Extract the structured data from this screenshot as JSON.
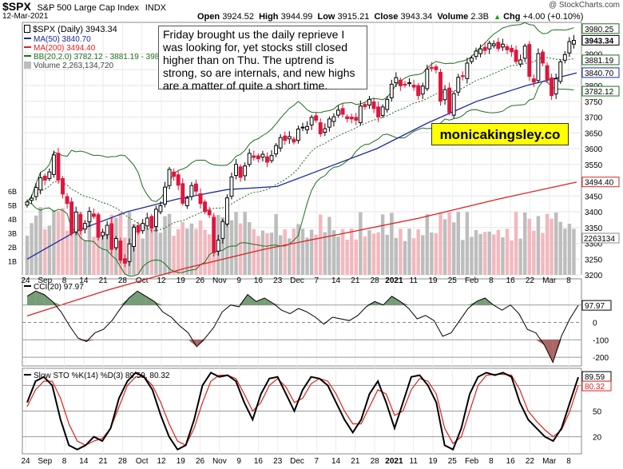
{
  "header": {
    "symbol": "$SPX",
    "name": "S&P 500 Large Cap Index",
    "exchange": "INDX",
    "date": "12-Mar-2021",
    "watermark": "@ StockCharts.com",
    "open_label": "Open",
    "open": "3924.52",
    "high_label": "High",
    "high": "3944.99",
    "low_label": "Low",
    "low": "3915.21",
    "close_label": "Close",
    "close": "3943.34",
    "volume_label": "Volume",
    "volume": "2.3B",
    "chg_label": "Chg",
    "chg": "+4.00 (+0.10%)",
    "chg_icon": "up-triangle"
  },
  "legend": {
    "price": "$SPX (Daily) 3943.34",
    "ma50": "MA(50) 3840.70",
    "ma200": "MA(200) 3494.40",
    "bb": "BB(20,2.0) 3782.12 - 3881.19 - 3980.25",
    "volume": "Volume 2,263,134,720",
    "cci": "CCI(20) 97.97",
    "sto": "Slow STO %K(14) %D(3) 89.59, 80.32"
  },
  "annotation": "Friday brought us the daily reprieve I was looking for, yet stocks still closed higher than on Thu. The uptrend is strong, so are internals, and new highs are a matter of quite a short time.",
  "brand": "monicakingsley.co",
  "colors": {
    "up": "#000000",
    "down": "#e0143c",
    "ma50": "#1c2a9c",
    "ma200": "#e02020",
    "bb": "#1e6e1e",
    "bbmid": "#1e6e1e",
    "vol_up": "#bdbdbd",
    "vol_down": "#f2b8bd",
    "cci": "#000000",
    "cci_fill": "#5e8c5e",
    "cci_fill_neg": "#9c4a4a",
    "stoK": "#000000",
    "stoD": "#e02020"
  },
  "chart_data": [
    {
      "type": "candlestick",
      "title": "$SPX (Daily)",
      "ylim": [
        3200,
        4000
      ],
      "yticks": [
        3200,
        3250,
        3300,
        3350,
        3400,
        3450,
        3500,
        3550,
        3600,
        3650,
        3700,
        3750,
        3800,
        3850,
        3900
      ],
      "xticks": [
        "24",
        "Sep",
        "8",
        "14",
        "21",
        "28",
        "Oct",
        "12",
        "19",
        "26",
        "Nov",
        "9",
        "16",
        "23",
        "Dec",
        "7",
        "14",
        "21",
        "28",
        "2021",
        "11",
        "19",
        "25",
        "Feb",
        "8",
        "16",
        "22",
        "Mar",
        "8"
      ],
      "price_labels": {
        "bb_upper": "3980.25",
        "last": "3943.34",
        "bb_mid": "3881.19",
        "ma50": "3840.70",
        "bb_lower": "3782.12",
        "ma200": "3494.40",
        "volume": "2263134"
      },
      "volume_axis": [
        "1B",
        "2B",
        "3B",
        "4B",
        "5B",
        "6B"
      ],
      "close": [
        3431,
        3443,
        3477,
        3508,
        3500,
        3526,
        3580,
        3500,
        3456,
        3426,
        3331,
        3399,
        3340,
        3363,
        3401,
        3385,
        3319,
        3335,
        3357,
        3281,
        3315,
        3246,
        3237,
        3298,
        3351,
        3335,
        3363,
        3380,
        3348,
        3408,
        3419,
        3478,
        3534,
        3512,
        3484,
        3427,
        3443,
        3483,
        3465,
        3426,
        3400,
        3390,
        3270,
        3310,
        3369,
        3444,
        3510,
        3550,
        3509,
        3545,
        3585,
        3572,
        3568,
        3582,
        3557,
        3578,
        3610,
        3635,
        3626,
        3638,
        3621,
        3662,
        3668,
        3670,
        3699,
        3690,
        3647,
        3663,
        3694,
        3701,
        3722,
        3709,
        3695,
        3694,
        3690,
        3735,
        3733,
        3756,
        3727,
        3700,
        3732,
        3756,
        3804,
        3825,
        3799,
        3801,
        3809,
        3795,
        3768,
        3798,
        3852,
        3854,
        3850,
        3750,
        3787,
        3714,
        3774,
        3826,
        3830,
        3871,
        3887,
        3909,
        3916,
        3911,
        3934,
        3932,
        3917,
        3931,
        3913,
        3907,
        3876,
        3881,
        3925,
        3829,
        3811,
        3901,
        3871,
        3819,
        3768,
        3821,
        3875,
        3898,
        3939,
        3943
      ],
      "ma50_approx": [
        3250,
        3340,
        3400,
        3440,
        3470,
        3480,
        3540,
        3600,
        3680,
        3750,
        3800,
        3840
      ],
      "ma200_approx": [
        3070,
        3150,
        3220,
        3280,
        3330,
        3380,
        3440,
        3494
      ]
    },
    {
      "type": "line",
      "title": "CCI(20)",
      "ylim": [
        -250,
        250
      ],
      "yticks": [
        -200,
        -100,
        0,
        100
      ],
      "last": "97.97",
      "values": [
        150,
        180,
        160,
        120,
        60,
        -20,
        -90,
        -110,
        -60,
        -40,
        10,
        80,
        140,
        180,
        150,
        120,
        60,
        30,
        -20,
        -60,
        -140,
        -90,
        -30,
        60,
        100,
        90,
        160,
        120,
        140,
        110,
        70,
        50,
        80,
        60,
        30,
        -10,
        30,
        20,
        10,
        40,
        90,
        120,
        100,
        150,
        120,
        80,
        20,
        40,
        10,
        -80,
        -60,
        10,
        80,
        120,
        140,
        100,
        70,
        100,
        50,
        -40,
        -60,
        -130,
        -230,
        -80,
        20,
        97.97
      ]
    },
    {
      "type": "line",
      "title": "Slow STO %K(14) %D(3)",
      "ylim": [
        0,
        100
      ],
      "yticks": [
        20,
        50,
        80
      ],
      "last_k": "89.59",
      "last_d": "80.32",
      "k": [
        60,
        85,
        90,
        80,
        40,
        10,
        5,
        10,
        20,
        15,
        30,
        65,
        85,
        95,
        90,
        75,
        45,
        20,
        5,
        10,
        40,
        80,
        95,
        90,
        92,
        85,
        60,
        40,
        70,
        88,
        90,
        70,
        50,
        75,
        90,
        88,
        80,
        60,
        40,
        25,
        40,
        70,
        85,
        60,
        30,
        60,
        90,
        92,
        80,
        60,
        10,
        5,
        30,
        70,
        90,
        95,
        92,
        95,
        90,
        60,
        40,
        30,
        20,
        15,
        30,
        60,
        89.59
      ],
      "d": [
        55,
        75,
        85,
        85,
        65,
        35,
        15,
        10,
        15,
        18,
        30,
        55,
        80,
        90,
        90,
        80,
        60,
        35,
        15,
        10,
        30,
        60,
        85,
        92,
        92,
        88,
        70,
        50,
        60,
        80,
        88,
        78,
        60,
        65,
        82,
        88,
        85,
        70,
        50,
        35,
        35,
        55,
        75,
        70,
        45,
        50,
        75,
        88,
        85,
        70,
        30,
        12,
        20,
        50,
        80,
        92,
        93,
        93,
        92,
        75,
        50,
        38,
        28,
        20,
        28,
        50,
        80.32
      ]
    }
  ]
}
